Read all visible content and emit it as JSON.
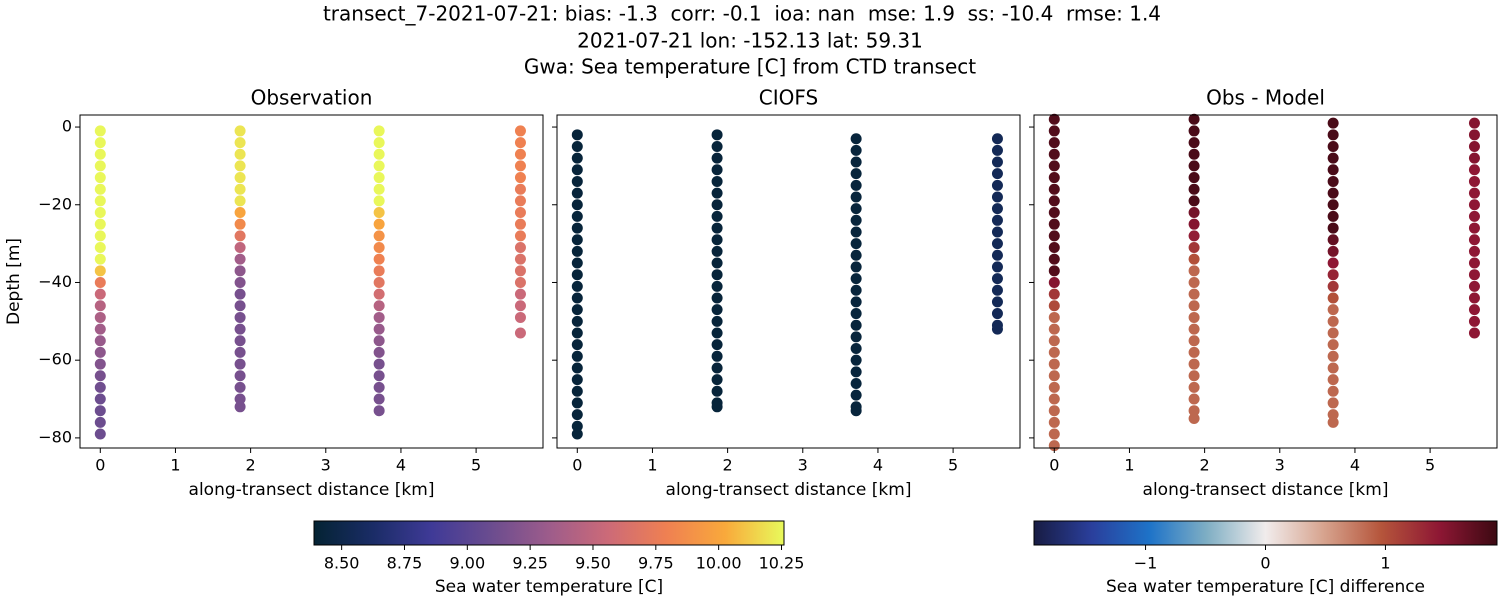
{
  "title": [
    "transect_7-2021-07-21: bias: -1.3  corr: -0.1  ioa: nan  mse: 1.9  ss: -10.4  rmse: 1.4",
    "2021-07-21 lon: -152.13 lat: 59.31",
    "Gwa: Sea temperature [C] from CTD transect"
  ],
  "chart_data": [
    {
      "type": "scatter",
      "title": "Observation",
      "xlabel": "along-transect distance [km]",
      "ylabel": "Depth [m]",
      "xlim": [
        -0.27,
        5.89
      ],
      "ylim": [
        -82.6,
        3.1
      ],
      "xticks": [
        0,
        1,
        2,
        3,
        4,
        5
      ],
      "yticks": [
        0,
        {
          "value": -20,
          "label": "−20"
        },
        {
          "value": -40,
          "label": "−40"
        },
        {
          "value": -60,
          "label": "−60"
        },
        {
          "value": -80,
          "label": "−80"
        }
      ],
      "show_ytick_labels": true,
      "colorbar": 0,
      "series": [
        {
          "x": 0,
          "y": [
            -1,
            -4,
            -7,
            -10,
            -13,
            -16,
            -19,
            -22,
            -25,
            -28,
            -31,
            -34,
            -37,
            -40,
            -43,
            -46,
            -49,
            -52,
            -55,
            -58,
            -61,
            -64,
            -67,
            -70,
            -73,
            -76,
            -79
          ],
          "values": [
            10.25,
            10.25,
            10.25,
            10.25,
            10.25,
            10.25,
            10.25,
            10.25,
            10.25,
            10.25,
            10.25,
            10.25,
            10.1,
            9.75,
            9.55,
            9.45,
            9.4,
            9.35,
            9.3,
            9.25,
            9.2,
            9.15,
            9.12,
            9.1,
            9.1,
            9.1,
            9.1
          ]
        },
        {
          "x": 1.86,
          "y": [
            -1,
            -4,
            -7,
            -10,
            -13,
            -16,
            -19,
            -22,
            -25,
            -28,
            -31,
            -34,
            -37,
            -40,
            -43,
            -46,
            -49,
            -52,
            -55,
            -58,
            -61,
            -64,
            -67,
            -70,
            -72
          ],
          "values": [
            10.2,
            10.2,
            10.2,
            10.2,
            10.2,
            10.2,
            10.2,
            10.0,
            9.85,
            9.7,
            9.5,
            9.35,
            9.25,
            9.2,
            9.15,
            9.15,
            9.15,
            9.15,
            9.15,
            9.15,
            9.15,
            9.15,
            9.15,
            9.15,
            9.15
          ]
        },
        {
          "x": 3.71,
          "y": [
            -1,
            -4,
            -7,
            -10,
            -13,
            -16,
            -19,
            -22,
            -25,
            -28,
            -31,
            -34,
            -37,
            -40,
            -43,
            -46,
            -49,
            -52,
            -55,
            -58,
            -61,
            -64,
            -67,
            -70,
            -73
          ],
          "values": [
            10.25,
            10.25,
            10.25,
            10.25,
            10.25,
            10.25,
            10.25,
            10.1,
            10.0,
            9.9,
            9.85,
            9.8,
            9.75,
            9.7,
            9.6,
            9.45,
            9.35,
            9.3,
            9.25,
            9.2,
            9.15,
            9.15,
            9.15,
            9.15,
            9.15
          ]
        },
        {
          "x": 5.59,
          "y": [
            -1,
            -4,
            -7,
            -10,
            -13,
            -16,
            -19,
            -22,
            -25,
            -28,
            -31,
            -34,
            -37,
            -40,
            -43,
            -46,
            -49,
            -53
          ],
          "values": [
            9.8,
            9.8,
            9.8,
            9.8,
            9.8,
            9.75,
            9.75,
            9.75,
            9.75,
            9.75,
            9.65,
            9.65,
            9.65,
            9.65,
            9.55,
            9.55,
            9.55,
            9.55
          ]
        }
      ]
    },
    {
      "type": "scatter",
      "title": "CIOFS",
      "xlabel": "along-transect distance [km]",
      "xlim": [
        -0.27,
        5.89
      ],
      "ylim": [
        -82.6,
        3.1
      ],
      "xticks": [
        0,
        1,
        2,
        3,
        4,
        5
      ],
      "yticks": [
        0,
        -20,
        -40,
        -60,
        -80
      ],
      "show_ytick_labels": false,
      "colorbar": 0,
      "series": [
        {
          "x": 0,
          "y": [
            -2,
            -5,
            -8,
            -11,
            -14,
            -17,
            -20,
            -23,
            -26,
            -29,
            -32,
            -35,
            -38,
            -41,
            -44,
            -47,
            -50,
            -53,
            -56,
            -59,
            -62,
            -65,
            -68,
            -71,
            -74,
            -77,
            -79
          ],
          "values": [
            8.42,
            8.42,
            8.42,
            8.42,
            8.42,
            8.42,
            8.42,
            8.42,
            8.42,
            8.42,
            8.42,
            8.42,
            8.42,
            8.42,
            8.42,
            8.42,
            8.42,
            8.42,
            8.42,
            8.42,
            8.42,
            8.42,
            8.42,
            8.42,
            8.42,
            8.42,
            8.42
          ]
        },
        {
          "x": 1.86,
          "y": [
            -2,
            -5,
            -8,
            -11,
            -14,
            -17,
            -20,
            -23,
            -26,
            -29,
            -32,
            -35,
            -38,
            -41,
            -44,
            -47,
            -50,
            -53,
            -56,
            -59,
            -62,
            -65,
            -68,
            -71,
            -72
          ],
          "values": [
            8.42,
            8.42,
            8.42,
            8.42,
            8.42,
            8.42,
            8.42,
            8.42,
            8.42,
            8.42,
            8.42,
            8.42,
            8.42,
            8.42,
            8.42,
            8.42,
            8.42,
            8.42,
            8.42,
            8.42,
            8.42,
            8.42,
            8.42,
            8.42,
            8.42
          ]
        },
        {
          "x": 3.71,
          "y": [
            -3,
            -6,
            -9,
            -12,
            -15,
            -18,
            -21,
            -24,
            -27,
            -30,
            -33,
            -36,
            -39,
            -42,
            -45,
            -48,
            -51,
            -54,
            -57,
            -60,
            -63,
            -66,
            -69,
            -72,
            -73
          ],
          "values": [
            8.43,
            8.43,
            8.43,
            8.43,
            8.43,
            8.43,
            8.43,
            8.43,
            8.43,
            8.43,
            8.43,
            8.43,
            8.43,
            8.43,
            8.43,
            8.43,
            8.43,
            8.43,
            8.43,
            8.43,
            8.43,
            8.43,
            8.43,
            8.43,
            8.43
          ]
        },
        {
          "x": 5.59,
          "y": [
            -3,
            -6,
            -9,
            -12,
            -15,
            -18,
            -21,
            -24,
            -27,
            -30,
            -33,
            -36,
            -39,
            -42,
            -45,
            -48,
            -51,
            -52
          ],
          "values": [
            8.55,
            8.55,
            8.55,
            8.55,
            8.55,
            8.55,
            8.55,
            8.55,
            8.55,
            8.55,
            8.55,
            8.55,
            8.55,
            8.55,
            8.55,
            8.55,
            8.55,
            8.55
          ]
        }
      ]
    },
    {
      "type": "scatter",
      "title": "Obs - Model",
      "xlabel": "along-transect distance [km]",
      "xlim": [
        -0.27,
        5.89
      ],
      "ylim": [
        -82.6,
        3.1
      ],
      "xticks": [
        0,
        1,
        2,
        3,
        4,
        5
      ],
      "yticks": [
        0,
        -20,
        -40,
        -60,
        -80
      ],
      "show_ytick_labels": false,
      "colorbar": 1,
      "series": [
        {
          "x": 0,
          "y": [
            2,
            -1,
            -4,
            -7,
            -10,
            -13,
            -16,
            -19,
            -22,
            -25,
            -28,
            -31,
            -34,
            -37,
            -40,
            -43,
            -46,
            -49,
            -52,
            -55,
            -58,
            -61,
            -64,
            -67,
            -70,
            -73,
            -76,
            -79,
            -82
          ],
          "values": [
            1.8,
            1.8,
            1.8,
            1.8,
            1.8,
            1.8,
            1.8,
            1.8,
            1.8,
            1.8,
            1.8,
            1.8,
            1.8,
            1.8,
            1.5,
            1.2,
            1.05,
            0.85,
            0.85,
            0.85,
            0.85,
            0.85,
            0.85,
            0.85,
            0.85,
            0.85,
            0.85,
            0.85,
            0.85
          ]
        },
        {
          "x": 1.86,
          "y": [
            2,
            -1,
            -4,
            -7,
            -10,
            -13,
            -16,
            -19,
            -22,
            -25,
            -28,
            -31,
            -34,
            -37,
            -40,
            -43,
            -46,
            -49,
            -52,
            -55,
            -58,
            -61,
            -64,
            -67,
            -70,
            -73,
            -75
          ],
          "values": [
            1.85,
            1.85,
            1.85,
            1.85,
            1.85,
            1.85,
            1.85,
            1.85,
            1.6,
            1.5,
            1.4,
            1.2,
            1.0,
            0.85,
            0.85,
            0.85,
            0.85,
            0.85,
            0.85,
            0.85,
            0.85,
            0.85,
            0.85,
            0.85,
            0.85,
            0.85,
            0.85
          ]
        },
        {
          "x": 3.71,
          "y": [
            1,
            -2,
            -5,
            -8,
            -11,
            -14,
            -17,
            -20,
            -23,
            -26,
            -29,
            -32,
            -35,
            -38,
            -41,
            -44,
            -47,
            -50,
            -53,
            -56,
            -59,
            -62,
            -65,
            -68,
            -71,
            -74,
            -76
          ],
          "values": [
            1.85,
            1.85,
            1.85,
            1.85,
            1.85,
            1.85,
            1.85,
            1.85,
            1.85,
            1.85,
            1.7,
            1.6,
            1.45,
            1.35,
            1.2,
            1.0,
            0.85,
            0.85,
            0.85,
            0.85,
            0.85,
            0.85,
            0.85,
            0.85,
            0.85,
            0.85,
            0.85
          ]
        },
        {
          "x": 5.59,
          "y": [
            1,
            -2,
            -5,
            -8,
            -11,
            -14,
            -17,
            -20,
            -23,
            -26,
            -29,
            -32,
            -35,
            -38,
            -41,
            -44,
            -47,
            -50,
            -53
          ],
          "values": [
            1.5,
            1.5,
            1.5,
            1.5,
            1.45,
            1.45,
            1.45,
            1.45,
            1.45,
            1.45,
            1.45,
            1.45,
            1.45,
            1.45,
            1.45,
            1.45,
            1.45,
            1.45,
            1.45
          ]
        }
      ]
    }
  ],
  "colorbars": [
    {
      "label": "Sea water temperature [C]",
      "lim": [
        8.39,
        10.26
      ],
      "ticks": [
        {
          "value": 8.5,
          "label": "8.50"
        },
        {
          "value": 8.75,
          "label": "8.75"
        },
        {
          "value": 9,
          "label": "9.00"
        },
        {
          "value": 9.25,
          "label": "9.25"
        },
        {
          "value": 9.5,
          "label": "9.50"
        },
        {
          "value": 9.75,
          "label": "9.75"
        },
        {
          "value": 10,
          "label": "10.00"
        },
        {
          "value": 10.25,
          "label": "10.25"
        }
      ],
      "colormap": [
        "#042333",
        "#1a2c66",
        "#3f3a97",
        "#6a4c8f",
        "#9d5c8b",
        "#cc6a78",
        "#ef8052",
        "#f9a93b",
        "#e8fa5b"
      ]
    },
    {
      "label": "Sea water temperature [C] difference",
      "lim": [
        -1.93,
        1.93
      ],
      "ticks": [
        {
          "value": -1,
          "label": "−1"
        },
        0,
        1
      ],
      "colormap": [
        "#181c43",
        "#2a3f9c",
        "#1e73c8",
        "#80afc4",
        "#f1ecec",
        "#d7a48f",
        "#b5553b",
        "#8e1734",
        "#3c0912"
      ]
    }
  ]
}
